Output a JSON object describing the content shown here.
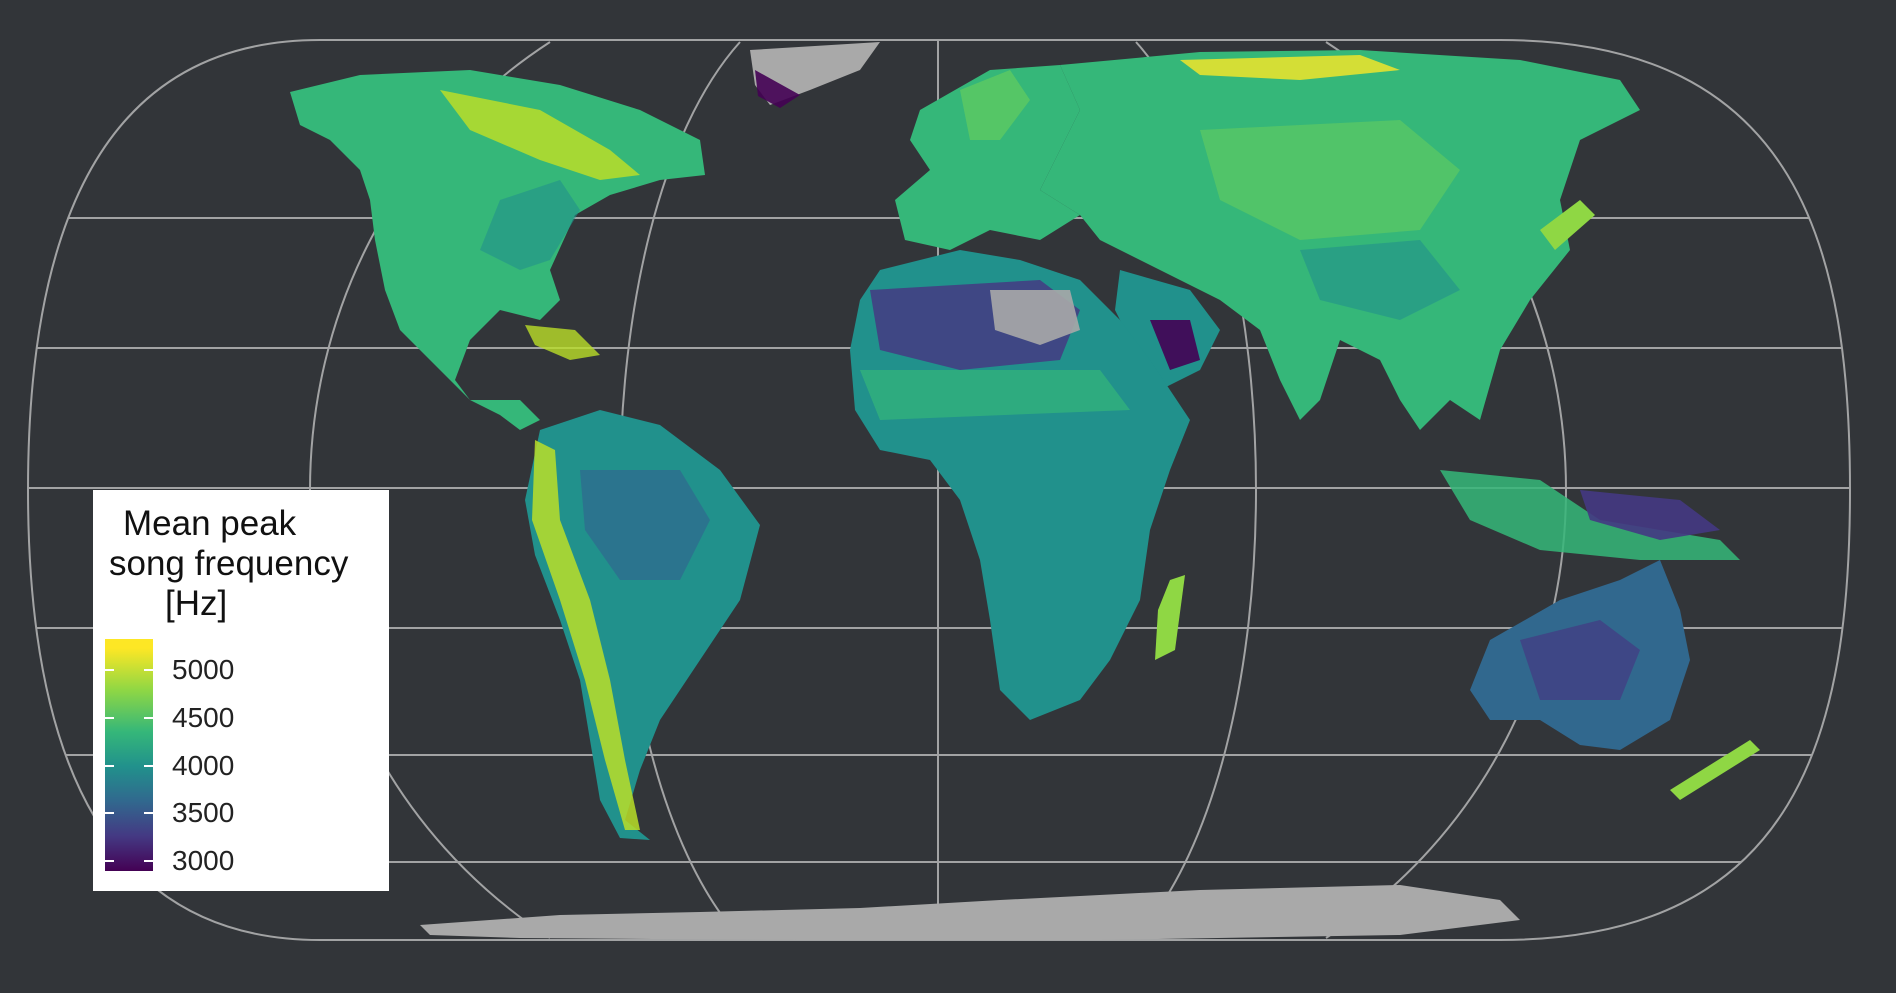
{
  "map": {
    "projection": "Eckert IV",
    "graticule_color": "#c8c8c8",
    "background_color": "#323539",
    "no_data_color": "#a9a9a9"
  },
  "legend": {
    "title_line1": "Mean peak",
    "title_line2": "song frequency",
    "title_line3": "[Hz]",
    "ticks": [
      "5000",
      "4500",
      "4000",
      "3500",
      "3000"
    ],
    "colors": [
      "#fde725",
      "#8fd744",
      "#35b779",
      "#21918c",
      "#31688e",
      "#443983",
      "#440154"
    ]
  }
}
